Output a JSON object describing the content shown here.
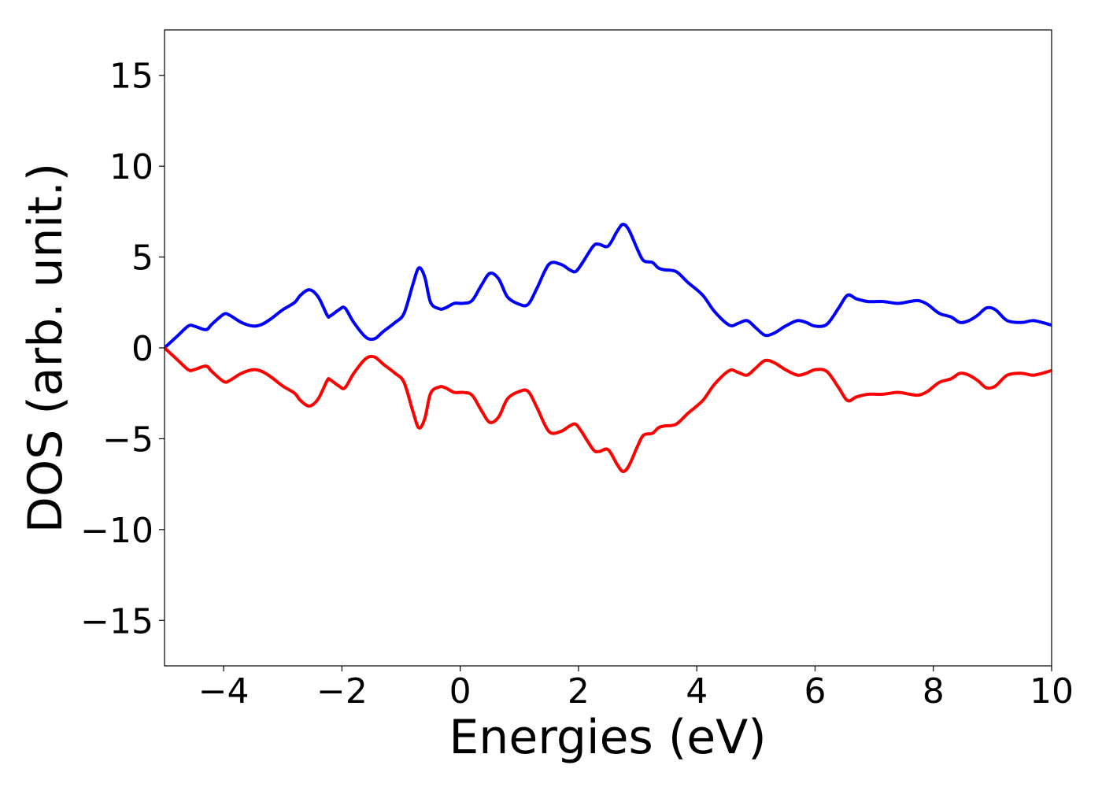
{
  "chart_data": {
    "type": "line",
    "title": "",
    "xlabel": "Energies (eV)",
    "ylabel": "DOS (arb. unit.)",
    "xlim": [
      -5,
      10
    ],
    "ylim": [
      -17.5,
      17.5
    ],
    "xticks": [
      -4,
      -2,
      0,
      2,
      4,
      6,
      8,
      10
    ],
    "yticks": [
      -15,
      -10,
      -5,
      0,
      5,
      10,
      15
    ],
    "xtick_labels": [
      "−4",
      "−2",
      "0",
      "2",
      "4",
      "6",
      "8",
      "10"
    ],
    "ytick_labels": [
      "−15",
      "−10",
      "−5",
      "0",
      "5",
      "10",
      "15"
    ],
    "grid": false,
    "legend": "none",
    "series": [
      {
        "color": "#0000ff",
        "x": [
          -5.0,
          -4.8,
          -4.6,
          -4.5,
          -4.3,
          -4.2,
          -4.0,
          -3.9,
          -3.7,
          -3.5,
          -3.35,
          -3.2,
          -3.0,
          -2.8,
          -2.7,
          -2.55,
          -2.4,
          -2.25,
          -2.2,
          -2.05,
          -1.95,
          -1.8,
          -1.6,
          -1.45,
          -1.3,
          -1.1,
          -0.95,
          -0.8,
          -0.7,
          -0.6,
          -0.5,
          -0.35,
          -0.25,
          -0.1,
          0.05,
          0.2,
          0.35,
          0.5,
          0.65,
          0.8,
          1.0,
          1.15,
          1.3,
          1.5,
          1.7,
          1.85,
          1.95,
          2.05,
          2.25,
          2.35,
          2.5,
          2.65,
          2.75,
          2.85,
          3.0,
          3.1,
          3.25,
          3.35,
          3.45,
          3.65,
          3.85,
          4.1,
          4.3,
          4.55,
          4.7,
          4.85,
          5.0,
          5.15,
          5.3,
          5.5,
          5.7,
          5.85,
          6.0,
          6.2,
          6.4,
          6.55,
          6.7,
          6.9,
          7.15,
          7.4,
          7.6,
          7.75,
          7.9,
          8.1,
          8.3,
          8.45,
          8.6,
          8.75,
          8.9,
          9.05,
          9.25,
          9.5,
          9.7,
          10.0
        ],
        "values": [
          0.0,
          0.6,
          1.2,
          1.2,
          1.0,
          1.3,
          1.85,
          1.8,
          1.4,
          1.2,
          1.3,
          1.6,
          2.1,
          2.5,
          2.9,
          3.2,
          2.8,
          1.8,
          1.75,
          2.1,
          2.2,
          1.4,
          0.6,
          0.5,
          0.9,
          1.4,
          1.9,
          3.5,
          4.4,
          3.9,
          2.5,
          2.15,
          2.2,
          2.45,
          2.45,
          2.6,
          3.4,
          4.1,
          3.8,
          2.8,
          2.4,
          2.4,
          3.3,
          4.6,
          4.6,
          4.3,
          4.2,
          4.6,
          5.6,
          5.7,
          5.6,
          6.4,
          6.8,
          6.5,
          5.4,
          4.8,
          4.7,
          4.4,
          4.3,
          4.2,
          3.6,
          2.9,
          2.0,
          1.25,
          1.35,
          1.5,
          1.1,
          0.7,
          0.8,
          1.2,
          1.5,
          1.4,
          1.2,
          1.3,
          2.2,
          2.9,
          2.7,
          2.55,
          2.55,
          2.45,
          2.55,
          2.6,
          2.4,
          1.9,
          1.7,
          1.4,
          1.5,
          1.8,
          2.2,
          2.1,
          1.5,
          1.4,
          1.5,
          1.25
        ]
      },
      {
        "color": "#ff0000",
        "x": [
          -5.0,
          -4.8,
          -4.6,
          -4.5,
          -4.3,
          -4.2,
          -4.0,
          -3.9,
          -3.7,
          -3.5,
          -3.35,
          -3.2,
          -3.0,
          -2.8,
          -2.7,
          -2.55,
          -2.4,
          -2.25,
          -2.2,
          -2.05,
          -1.95,
          -1.8,
          -1.6,
          -1.45,
          -1.3,
          -1.1,
          -0.95,
          -0.8,
          -0.7,
          -0.6,
          -0.5,
          -0.35,
          -0.25,
          -0.1,
          0.05,
          0.2,
          0.35,
          0.5,
          0.65,
          0.8,
          1.0,
          1.15,
          1.3,
          1.5,
          1.7,
          1.85,
          1.95,
          2.05,
          2.25,
          2.35,
          2.5,
          2.65,
          2.75,
          2.85,
          3.0,
          3.1,
          3.25,
          3.35,
          3.45,
          3.65,
          3.85,
          4.1,
          4.3,
          4.55,
          4.7,
          4.85,
          5.0,
          5.15,
          5.3,
          5.5,
          5.7,
          5.85,
          6.0,
          6.2,
          6.4,
          6.55,
          6.7,
          6.9,
          7.15,
          7.4,
          7.6,
          7.75,
          7.9,
          8.1,
          8.3,
          8.45,
          8.6,
          8.75,
          8.9,
          9.05,
          9.25,
          9.5,
          9.7,
          10.0
        ],
        "values": [
          0.0,
          -0.6,
          -1.2,
          -1.2,
          -1.0,
          -1.3,
          -1.85,
          -1.8,
          -1.4,
          -1.2,
          -1.3,
          -1.6,
          -2.1,
          -2.5,
          -2.9,
          -3.2,
          -2.8,
          -1.8,
          -1.75,
          -2.1,
          -2.2,
          -1.4,
          -0.6,
          -0.5,
          -0.9,
          -1.4,
          -1.9,
          -3.5,
          -4.4,
          -3.9,
          -2.5,
          -2.15,
          -2.2,
          -2.45,
          -2.45,
          -2.6,
          -3.4,
          -4.1,
          -3.8,
          -2.8,
          -2.4,
          -2.4,
          -3.3,
          -4.6,
          -4.6,
          -4.3,
          -4.2,
          -4.6,
          -5.6,
          -5.7,
          -5.6,
          -6.4,
          -6.8,
          -6.5,
          -5.4,
          -4.8,
          -4.7,
          -4.4,
          -4.3,
          -4.2,
          -3.6,
          -2.9,
          -2.0,
          -1.25,
          -1.35,
          -1.5,
          -1.1,
          -0.7,
          -0.8,
          -1.2,
          -1.5,
          -1.4,
          -1.2,
          -1.3,
          -2.2,
          -2.9,
          -2.7,
          -2.55,
          -2.55,
          -2.45,
          -2.55,
          -2.6,
          -2.4,
          -1.9,
          -1.7,
          -1.4,
          -1.5,
          -1.8,
          -2.2,
          -2.1,
          -1.5,
          -1.4,
          -1.5,
          -1.25
        ]
      }
    ]
  }
}
